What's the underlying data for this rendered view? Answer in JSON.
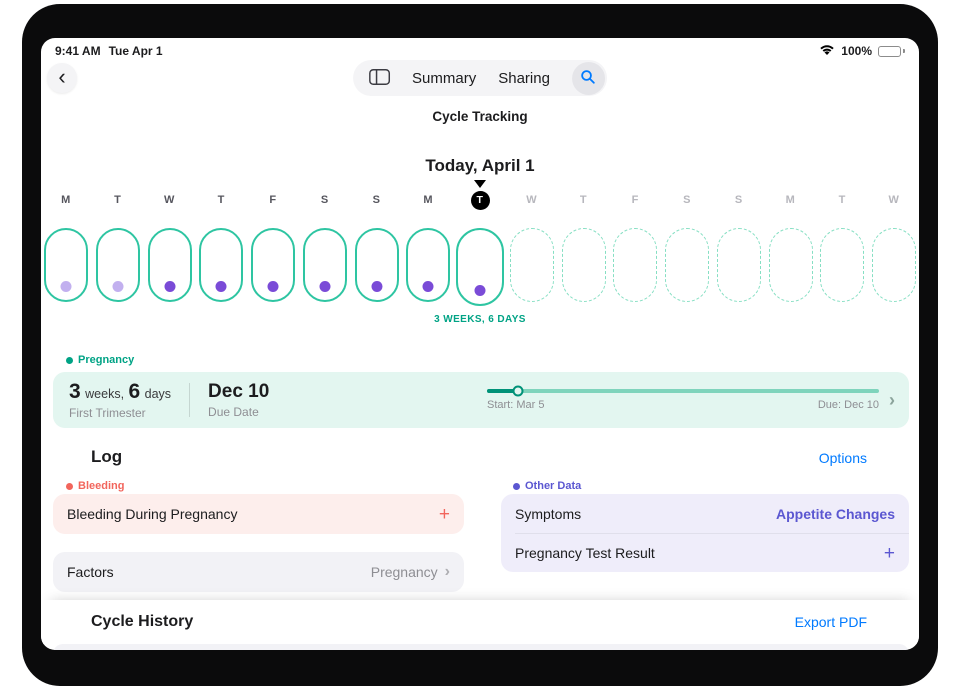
{
  "status_bar": {
    "time": "9:41 AM",
    "date": "Tue Apr 1",
    "battery_percent": "100%"
  },
  "nav": {
    "back_glyph": "‹",
    "tab_summary": "Summary",
    "tab_sharing": "Sharing",
    "title": "Cycle Tracking"
  },
  "today_heading": "Today, April 1",
  "day_strip": {
    "caption": "3 WEEKS, 6 DAYS",
    "days": [
      {
        "letter": "M",
        "state": "past",
        "dot": "light"
      },
      {
        "letter": "T",
        "state": "past",
        "dot": "light"
      },
      {
        "letter": "W",
        "state": "past",
        "dot": "dark"
      },
      {
        "letter": "T",
        "state": "past",
        "dot": "dark"
      },
      {
        "letter": "F",
        "state": "past",
        "dot": "dark"
      },
      {
        "letter": "S",
        "state": "past",
        "dot": "dark"
      },
      {
        "letter": "S",
        "state": "past",
        "dot": "dark"
      },
      {
        "letter": "M",
        "state": "past",
        "dot": "dark"
      },
      {
        "letter": "T",
        "state": "today",
        "dot": "dark"
      },
      {
        "letter": "W",
        "state": "future",
        "dot": null
      },
      {
        "letter": "T",
        "state": "future",
        "dot": null
      },
      {
        "letter": "F",
        "state": "future",
        "dot": null
      },
      {
        "letter": "S",
        "state": "future",
        "dot": null
      },
      {
        "letter": "S",
        "state": "future",
        "dot": null
      },
      {
        "letter": "M",
        "state": "future",
        "dot": null
      },
      {
        "letter": "T",
        "state": "future",
        "dot": null
      },
      {
        "letter": "W",
        "state": "future",
        "dot": null
      }
    ]
  },
  "pregnancy": {
    "section_label": "Pregnancy",
    "weeks_value": "3",
    "weeks_unit": "weeks,",
    "days_value": "6",
    "days_unit": "days",
    "stage": "First Trimester",
    "due_value": "Dec 10",
    "due_caption": "Due Date",
    "progress": {
      "percent": 8,
      "start_label": "Start: Mar 5",
      "due_label": "Due: Dec 10"
    },
    "chevron_glyph": "›"
  },
  "log": {
    "title": "Log",
    "options_label": "Options",
    "bleeding_label": "Bleeding",
    "bleeding_item": "Bleeding During Pregnancy",
    "bleeding_add_glyph": "+",
    "factors_title": "Factors",
    "factors_value": "Pregnancy",
    "factors_chevron": "›",
    "other_label": "Other Data",
    "other_rows": [
      {
        "title": "Symptoms",
        "value": "Appetite Changes"
      },
      {
        "title": "Pregnancy Test Result",
        "value": "+"
      }
    ]
  },
  "history": {
    "title": "Cycle History",
    "export_label": "Export PDF"
  },
  "colors": {
    "teal": "#00a385",
    "mint_solid": "#2ec5a2",
    "mint_dashed": "#86dfc3",
    "banner_bg": "#e3f6f0",
    "track": "#7fd4bc",
    "track_fill": "#009278",
    "purple_dot": "#7a4bd7",
    "purple_dot_light": "#c2b0ef",
    "red": "#f2655c",
    "red_bg": "#fdeeec",
    "gray_bg": "#f2f2f6",
    "purple": "#5b57d1",
    "purple_bg": "#efedfa",
    "blue": "#007aff"
  }
}
